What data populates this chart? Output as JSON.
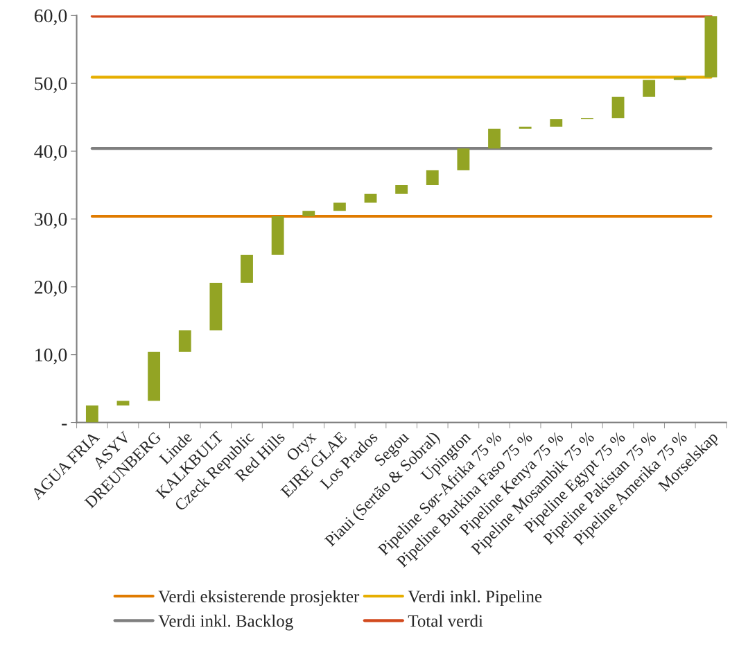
{
  "chart_data": {
    "type": "bar",
    "categories": [
      "AGUA FRIA",
      "ASYV",
      "DREUNBERG",
      "Linde",
      "KALKBULT",
      "Czeck Republic",
      "Red Hills",
      "Oryx",
      "EJRE GLAE",
      "Los Prados",
      "Segou",
      "Piaui (Sertão & Sobral)",
      "Upington",
      "Pipeline Sør-Afrika 75 %",
      "Pipeline Burkina Faso 75 %",
      "Pipeline Kenya 75 %",
      "Pipeline Mosambik 75 %",
      "Pipeline Egypt 75 %",
      "Pipeline Pakistan 75 %",
      "Pipeline Amerika 75 %",
      "Morselskap"
    ],
    "base": [
      0,
      2.5,
      3.2,
      10.4,
      13.6,
      20.6,
      24.7,
      30.4,
      31.2,
      32.4,
      33.7,
      35.0,
      37.2,
      40.4,
      43.3,
      43.6,
      44.7,
      44.9,
      48.0,
      50.5,
      50.9
    ],
    "values": [
      2.5,
      0.7,
      7.2,
      3.2,
      7.0,
      4.1,
      5.7,
      0.8,
      1.2,
      1.3,
      1.3,
      2.2,
      3.2,
      2.9,
      0.3,
      1.1,
      0.2,
      3.1,
      2.5,
      0.4,
      9.0
    ],
    "color": "#93a424",
    "ylim": [
      0,
      60
    ],
    "yticks": [
      {
        "value": 0,
        "label": "-"
      },
      {
        "value": 10,
        "label": "10,0"
      },
      {
        "value": 20,
        "label": "20,0"
      },
      {
        "value": 30,
        "label": "30,0"
      },
      {
        "value": 40,
        "label": "40,0"
      },
      {
        "value": 50,
        "label": "50,0"
      },
      {
        "value": 60,
        "label": "60,0"
      }
    ],
    "ref_lines": [
      {
        "axis": "y",
        "value": 30.4,
        "label": "Verdi eksisterende prosjekter",
        "color": "#e07b00"
      },
      {
        "axis": "y",
        "value": 40.4,
        "label": "Verdi inkl. Backlog",
        "color": "#7f7f7f"
      },
      {
        "axis": "y",
        "value": 50.9,
        "label": "Verdi inkl. Pipeline",
        "color": "#e6ae00"
      },
      {
        "axis": "y",
        "value": 59.9,
        "label": "Total verdi",
        "color": "#d24a1e"
      }
    ],
    "grid": false,
    "legend": "bottom"
  }
}
